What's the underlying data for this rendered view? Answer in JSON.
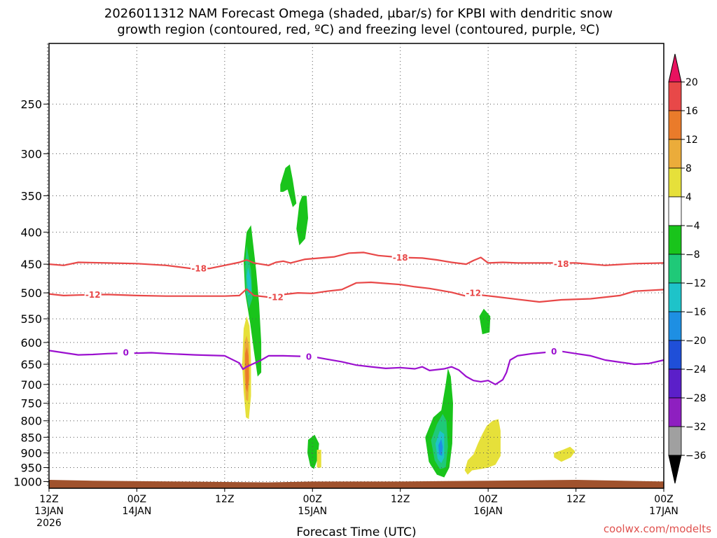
{
  "chart_data": {
    "type": "contour",
    "title_line1": "2026011312 NAM Forecast Omega (shaded, μbar/s) for KPBI with dendritic snow",
    "title_line2": "growth region (contoured, red, ºC) and freezing level (contoured, purple, ºC)",
    "xlabel": "Forecast Time (UTC)",
    "credit": "coolwx.com/modelts",
    "y_ticks": [
      250,
      300,
      350,
      400,
      450,
      500,
      550,
      600,
      650,
      700,
      750,
      800,
      850,
      900,
      950,
      1000
    ],
    "ylim": [
      200,
      1025
    ],
    "y_scale": "log",
    "xlim": [
      0,
      84
    ],
    "x_ticks": [
      {
        "h": 0,
        "l1": "12Z",
        "l2": "13JAN",
        "l3": "2026"
      },
      {
        "h": 12,
        "l1": "00Z",
        "l2": "14JAN",
        "l3": ""
      },
      {
        "h": 24,
        "l1": "12Z",
        "l2": "",
        "l3": ""
      },
      {
        "h": 36,
        "l1": "00Z",
        "l2": "15JAN",
        "l3": ""
      },
      {
        "h": 48,
        "l1": "12Z",
        "l2": "",
        "l3": ""
      },
      {
        "h": 60,
        "l1": "00Z",
        "l2": "16JAN",
        "l3": ""
      },
      {
        "h": 72,
        "l1": "12Z",
        "l2": "",
        "l3": ""
      },
      {
        "h": 84,
        "l1": "00Z",
        "l2": "17JAN",
        "l3": ""
      }
    ],
    "grid": true,
    "colorbar": {
      "labels": [
        "20",
        "16",
        "12",
        "8",
        "4",
        "−4",
        "−8",
        "−12",
        "−16",
        "−20",
        "−24",
        "−28",
        "−32",
        "−36"
      ],
      "colors": [
        "#e8125f",
        "#e84848",
        "#ea7b2a",
        "#ebac3a",
        "#e6e03a",
        "#ffffff",
        "#19c41b",
        "#1fc978",
        "#1ec3c9",
        "#1e8fe3",
        "#1f4fd8",
        "#5b1fc9",
        "#8e1fc0",
        "#a0a0a0",
        "#000000"
      ]
    },
    "isotherms": [
      {
        "value": -18,
        "label": "-18",
        "color": "#e84848",
        "points": [
          [
            0,
            450
          ],
          [
            2,
            452
          ],
          [
            4,
            447
          ],
          [
            8,
            448
          ],
          [
            12,
            449
          ],
          [
            16,
            452
          ],
          [
            20,
            458
          ],
          [
            22,
            457
          ],
          [
            24,
            452
          ],
          [
            26,
            447
          ],
          [
            27,
            443
          ],
          [
            28,
            448
          ],
          [
            30,
            452
          ],
          [
            31,
            447
          ],
          [
            32,
            445
          ],
          [
            33,
            448
          ],
          [
            35,
            442
          ],
          [
            37,
            440
          ],
          [
            39,
            438
          ],
          [
            41,
            432
          ],
          [
            43,
            431
          ],
          [
            45,
            436
          ],
          [
            48,
            439
          ],
          [
            51,
            440
          ],
          [
            53,
            443
          ],
          [
            55,
            447
          ],
          [
            57,
            450
          ],
          [
            58,
            444
          ],
          [
            59,
            439
          ],
          [
            60,
            448
          ],
          [
            62,
            447
          ],
          [
            64,
            448
          ],
          [
            68,
            448
          ],
          [
            72,
            448
          ],
          [
            76,
            452
          ],
          [
            80,
            449
          ],
          [
            84,
            448
          ]
        ],
        "label_at": [
          [
            20.5,
            457
          ],
          [
            48,
            439
          ],
          [
            70,
            449
          ]
        ]
      },
      {
        "value": -12,
        "label": "-12",
        "color": "#e84848",
        "points": [
          [
            0,
            502
          ],
          [
            2,
            505
          ],
          [
            4,
            504
          ],
          [
            8,
            503
          ],
          [
            12,
            505
          ],
          [
            16,
            506
          ],
          [
            20,
            506
          ],
          [
            24,
            506
          ],
          [
            26,
            505
          ],
          [
            27,
            493
          ],
          [
            28,
            505
          ],
          [
            30,
            508
          ],
          [
            32,
            503
          ],
          [
            34,
            500
          ],
          [
            36,
            501
          ],
          [
            38,
            497
          ],
          [
            40,
            494
          ],
          [
            42,
            482
          ],
          [
            44,
            481
          ],
          [
            46,
            483
          ],
          [
            48,
            485
          ],
          [
            50,
            489
          ],
          [
            52,
            492
          ],
          [
            55,
            499
          ],
          [
            57,
            506
          ],
          [
            59,
            504
          ],
          [
            61,
            507
          ],
          [
            64,
            512
          ],
          [
            67,
            517
          ],
          [
            70,
            513
          ],
          [
            74,
            511
          ],
          [
            78,
            505
          ],
          [
            80,
            497
          ],
          [
            84,
            494
          ]
        ],
        "label_at": [
          [
            6,
            503
          ],
          [
            31,
            508
          ],
          [
            58,
            500
          ]
        ]
      },
      {
        "value": 0,
        "label": "0",
        "color": "#9b10cf",
        "points": [
          [
            0,
            618
          ],
          [
            2,
            623
          ],
          [
            4,
            628
          ],
          [
            6,
            627
          ],
          [
            8,
            625
          ],
          [
            10,
            624
          ],
          [
            12,
            624
          ],
          [
            14,
            623
          ],
          [
            16,
            625
          ],
          [
            20,
            628
          ],
          [
            24,
            630
          ],
          [
            26,
            647
          ],
          [
            26.5,
            662
          ],
          [
            27,
            656
          ],
          [
            29,
            640
          ],
          [
            30,
            630
          ],
          [
            32,
            630
          ],
          [
            34,
            631
          ],
          [
            36,
            632
          ],
          [
            38,
            638
          ],
          [
            40,
            644
          ],
          [
            42,
            652
          ],
          [
            44,
            656
          ],
          [
            46,
            660
          ],
          [
            48,
            658
          ],
          [
            50,
            661
          ],
          [
            51,
            656
          ],
          [
            52,
            665
          ],
          [
            54,
            661
          ],
          [
            55,
            656
          ],
          [
            56,
            664
          ],
          [
            57,
            680
          ],
          [
            58,
            690
          ],
          [
            59,
            693
          ],
          [
            60,
            690
          ],
          [
            61,
            700
          ],
          [
            62,
            688
          ],
          [
            62.5,
            670
          ],
          [
            63,
            640
          ],
          [
            64,
            630
          ],
          [
            66,
            625
          ],
          [
            68,
            622
          ],
          [
            70,
            620
          ],
          [
            72,
            625
          ],
          [
            74,
            630
          ],
          [
            76,
            640
          ],
          [
            78,
            645
          ],
          [
            80,
            650
          ],
          [
            82,
            648
          ],
          [
            84,
            640
          ]
        ],
        "label_at": [
          [
            10.5,
            622
          ],
          [
            35.5,
            632
          ],
          [
            69,
            620
          ]
        ]
      }
    ],
    "omega_regions": [
      {
        "level": "-4 to -8",
        "color": "#19c41b",
        "poly": [
          [
            26.6,
            445
          ],
          [
            27,
            400
          ],
          [
            27.6,
            390
          ],
          [
            28.3,
            460
          ],
          [
            28.7,
            520
          ],
          [
            29,
            600
          ],
          [
            29,
            670
          ],
          [
            28.5,
            680
          ],
          [
            28,
            620
          ],
          [
            27.5,
            560
          ],
          [
            26.8,
            500
          ]
        ]
      },
      {
        "level": "-8 to -12",
        "color": "#1fc978",
        "poly": [
          [
            26.8,
            450
          ],
          [
            27,
            420
          ],
          [
            27.6,
            460
          ],
          [
            27.8,
            510
          ],
          [
            27.3,
            530
          ],
          [
            26.9,
            500
          ]
        ]
      },
      {
        "level": "-12 to -16",
        "color": "#1ec3c9",
        "poly": [
          [
            27,
            470
          ],
          [
            27.2,
            455
          ],
          [
            27.6,
            478
          ],
          [
            27.6,
            500
          ],
          [
            27.2,
            505
          ]
        ]
      },
      {
        "level": "4 to 8",
        "color": "#e6e03a",
        "poly": [
          [
            26.6,
            570
          ],
          [
            27,
            545
          ],
          [
            27.4,
            565
          ],
          [
            27.6,
            640
          ],
          [
            27.6,
            730
          ],
          [
            27.3,
            795
          ],
          [
            26.9,
            790
          ],
          [
            26.6,
            720
          ],
          [
            26.4,
            650
          ]
        ]
      },
      {
        "level": "8 to 12",
        "color": "#ebac3a",
        "poly": [
          [
            26.7,
            600
          ],
          [
            27,
            585
          ],
          [
            27.3,
            605
          ],
          [
            27.4,
            680
          ],
          [
            27.2,
            745
          ],
          [
            26.9,
            740
          ],
          [
            26.7,
            680
          ]
        ]
      },
      {
        "level": "12 to 16",
        "color": "#ea7b2a",
        "poly": [
          [
            26.8,
            625
          ],
          [
            27.05,
            610
          ],
          [
            27.25,
            630
          ],
          [
            27.3,
            685
          ],
          [
            27.1,
            720
          ],
          [
            26.9,
            710
          ],
          [
            26.8,
            660
          ]
        ]
      },
      {
        "level": "-4 to -8",
        "color": "#19c41b",
        "poly": [
          [
            31.6,
            336
          ],
          [
            32.3,
            316
          ],
          [
            32.9,
            312
          ],
          [
            33.3,
            330
          ],
          [
            33.8,
            360
          ],
          [
            33.3,
            365
          ],
          [
            32.6,
            342
          ],
          [
            32.0,
            345
          ],
          [
            31.6,
            345
          ]
        ]
      },
      {
        "level": "-4 to -8",
        "color": "#19c41b",
        "poly": [
          [
            33.8,
            395
          ],
          [
            34.2,
            360
          ],
          [
            34.6,
            350
          ],
          [
            35.2,
            350
          ],
          [
            35.4,
            380
          ],
          [
            35.0,
            410
          ],
          [
            34.2,
            420
          ]
        ]
      },
      {
        "level": "-4 to -8",
        "color": "#19c41b",
        "poly": [
          [
            58.8,
            545
          ],
          [
            59.4,
            530
          ],
          [
            60.3,
            545
          ],
          [
            60.2,
            578
          ],
          [
            59.2,
            582
          ]
        ]
      },
      {
        "level": "-4 to -8",
        "color": "#19c41b",
        "poly": [
          [
            51.4,
            850
          ],
          [
            52.5,
            790
          ],
          [
            53.6,
            770
          ],
          [
            54.2,
            700
          ],
          [
            54.5,
            660
          ],
          [
            54.9,
            680
          ],
          [
            55.2,
            750
          ],
          [
            55.1,
            870
          ],
          [
            54.7,
            950
          ],
          [
            54.0,
            985
          ],
          [
            53.0,
            975
          ],
          [
            51.9,
            930
          ]
        ]
      },
      {
        "level": "-8 to -12",
        "color": "#1fc978",
        "poly": [
          [
            52.2,
            860
          ],
          [
            53.0,
            810
          ],
          [
            53.8,
            780
          ],
          [
            54.3,
            800
          ],
          [
            54.5,
            880
          ],
          [
            54.2,
            950
          ],
          [
            53.4,
            955
          ],
          [
            52.7,
            925
          ]
        ]
      },
      {
        "level": "-12 to -16",
        "color": "#1ec3c9",
        "poly": [
          [
            52.8,
            870
          ],
          [
            53.4,
            830
          ],
          [
            54.0,
            840
          ],
          [
            54.0,
            915
          ],
          [
            53.6,
            935
          ],
          [
            53.1,
            920
          ]
        ]
      },
      {
        "level": "-16 to -20",
        "color": "#1e8fe3",
        "poly": [
          [
            53.2,
            875
          ],
          [
            53.6,
            855
          ],
          [
            53.8,
            880
          ],
          [
            53.7,
            910
          ],
          [
            53.3,
            905
          ]
        ]
      },
      {
        "level": "-4 to -8",
        "color": "#19c41b",
        "poly": [
          [
            35.4,
            858
          ],
          [
            36.3,
            842
          ],
          [
            36.9,
            870
          ],
          [
            36.7,
            920
          ],
          [
            36.2,
            955
          ],
          [
            35.7,
            945
          ],
          [
            35.3,
            900
          ]
        ]
      },
      {
        "level": "4 to 8",
        "color": "#e6e03a",
        "poly": [
          [
            36.6,
            890
          ],
          [
            37.2,
            890
          ],
          [
            37.2,
            950
          ],
          [
            36.6,
            950
          ]
        ]
      },
      {
        "level": "4 to 8",
        "color": "#e6e03a",
        "poly": [
          [
            56.8,
            960
          ],
          [
            57.2,
            925
          ],
          [
            58.0,
            905
          ],
          [
            58.6,
            870
          ],
          [
            59.2,
            840
          ],
          [
            59.8,
            815
          ],
          [
            60.6,
            800
          ],
          [
            61.4,
            795
          ],
          [
            61.7,
            830
          ],
          [
            61.7,
            910
          ],
          [
            61.0,
            940
          ],
          [
            60.0,
            950
          ],
          [
            59.0,
            955
          ],
          [
            57.8,
            960
          ],
          [
            57.2,
            975
          ]
        ]
      },
      {
        "level": "4 to 8",
        "color": "#e6e03a",
        "poly": [
          [
            69.0,
            900
          ],
          [
            70.2,
            890
          ],
          [
            71.2,
            880
          ],
          [
            71.9,
            895
          ],
          [
            71.3,
            915
          ],
          [
            70.0,
            930
          ],
          [
            69.0,
            915
          ]
        ]
      }
    ]
  }
}
